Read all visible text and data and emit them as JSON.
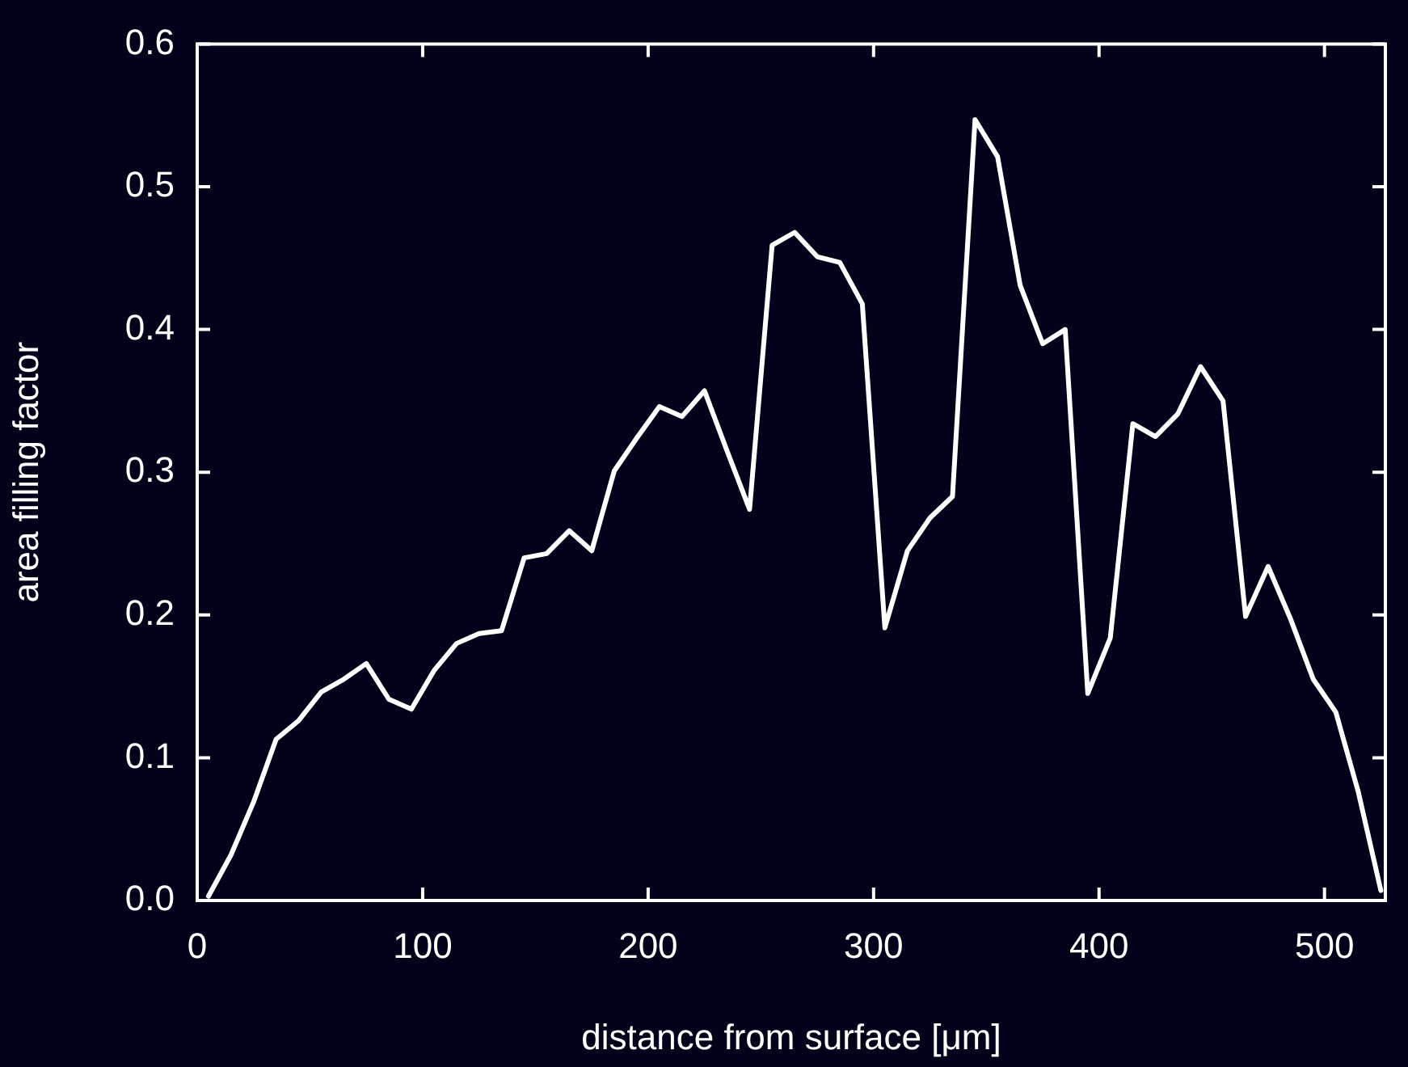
{
  "chart_data": {
    "type": "line",
    "xlabel": "distance from surface [μm]",
    "ylabel": "area filling factor",
    "x": [
      5,
      15,
      25,
      35,
      45,
      55,
      65,
      75,
      85,
      95,
      105,
      115,
      125,
      135,
      145,
      155,
      165,
      175,
      185,
      195,
      205,
      215,
      225,
      235,
      245,
      255,
      265,
      275,
      285,
      295,
      305,
      315,
      325,
      335,
      345,
      355,
      365,
      375,
      385,
      395,
      405,
      415,
      425,
      435,
      445,
      455,
      465,
      475,
      485,
      495,
      505,
      515,
      525
    ],
    "series": [
      {
        "color": "#ffffff",
        "values": [
          0.003,
          0.032,
          0.069,
          0.113,
          0.126,
          0.146,
          0.155,
          0.166,
          0.141,
          0.134,
          0.161,
          0.18,
          0.187,
          0.189,
          0.24,
          0.243,
          0.259,
          0.245,
          0.301,
          0.324,
          0.346,
          0.339,
          0.357,
          0.315,
          0.274,
          0.459,
          0.468,
          0.451,
          0.447,
          0.418,
          0.191,
          0.245,
          0.268,
          0.283,
          0.547,
          0.521,
          0.431,
          0.39,
          0.4,
          0.145,
          0.184,
          0.334,
          0.325,
          0.341,
          0.374,
          0.35,
          0.199,
          0.234,
          0.197,
          0.155,
          0.132,
          0.076,
          0.007
        ]
      }
    ],
    "xlim": [
      0,
      527
    ],
    "xticks": [
      0,
      100,
      200,
      300,
      400,
      500
    ],
    "ylim": [
      0,
      0.6
    ],
    "yticks": [
      {
        "value": 0,
        "label": "0.0"
      },
      0.1,
      0.2,
      0.3,
      0.4,
      0.5,
      0.6
    ],
    "grid": false,
    "legend": false,
    "marker": "none",
    "line_style": "solid"
  }
}
